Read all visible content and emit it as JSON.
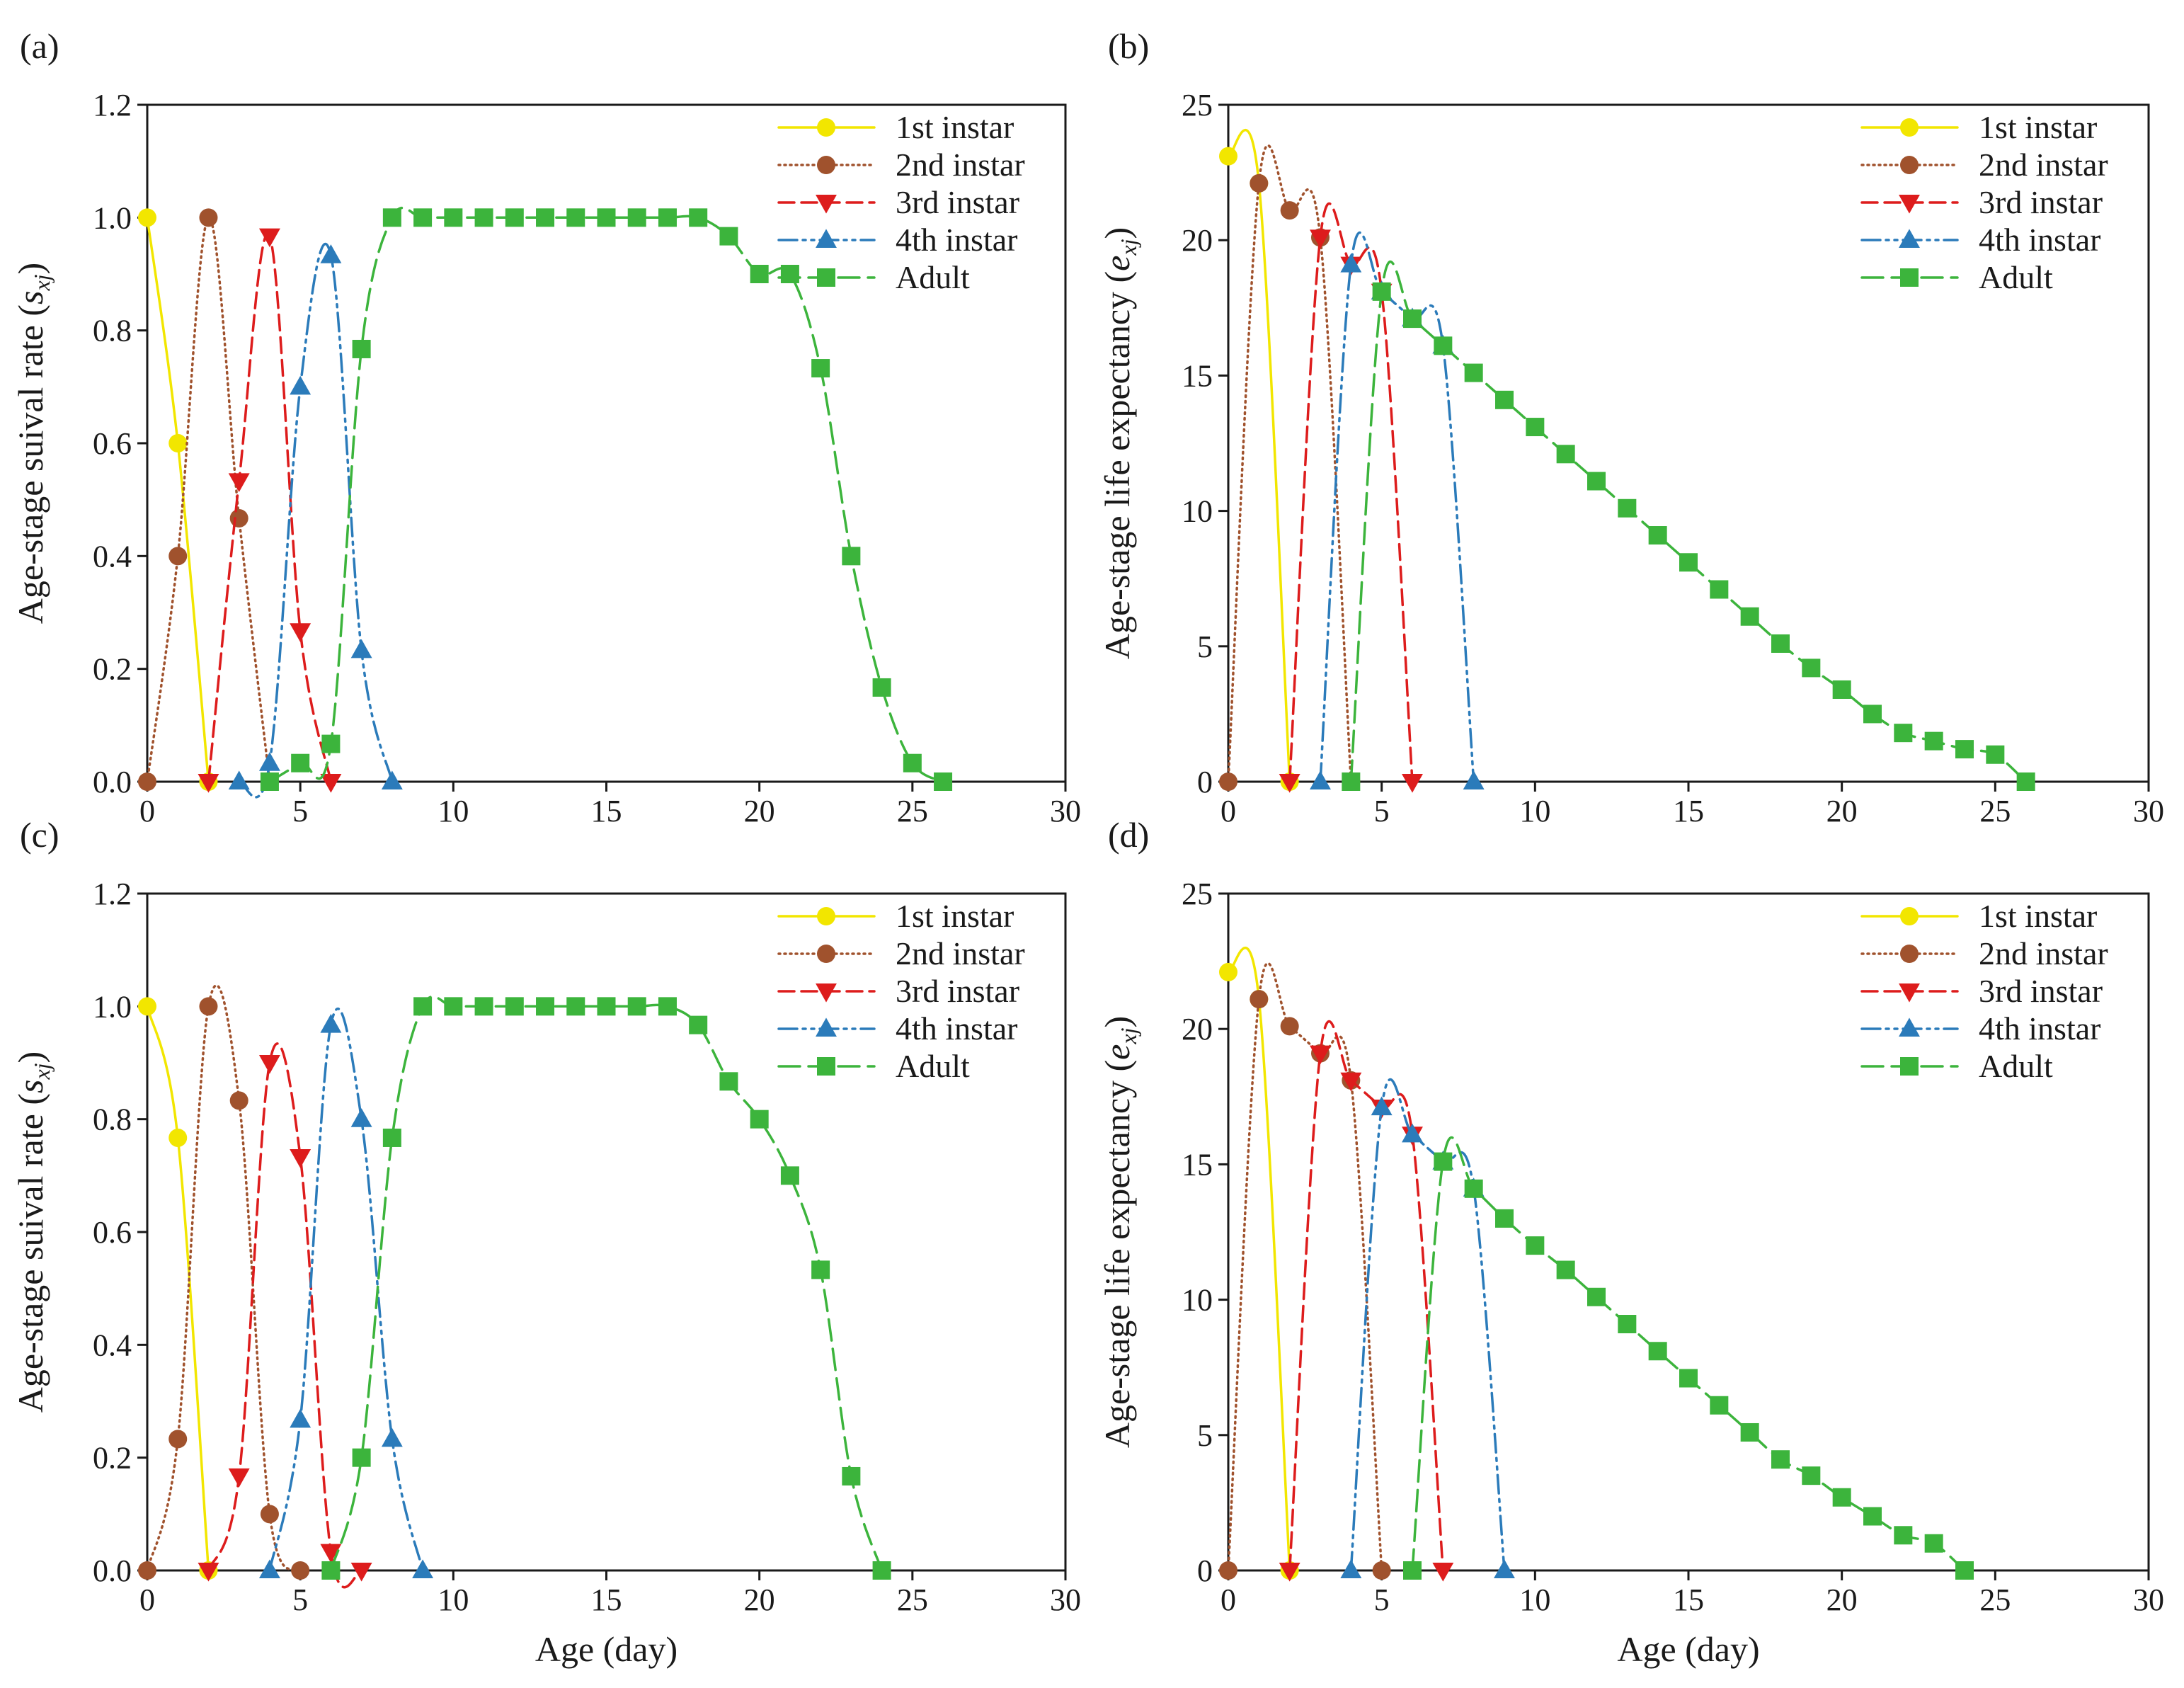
{
  "colors": {
    "1st instar": "#f2e600",
    "2nd instar": "#a0522d",
    "3rd instar": "#dd1c1c",
    "4th instar": "#2b7bba",
    "Adult": "#3cb43c"
  },
  "markers": {
    "1st instar": "circle",
    "2nd instar": "circle",
    "3rd instar": "triangle-down",
    "4th instar": "triangle-up",
    "Adult": "square"
  },
  "dashes": {
    "1st instar": "",
    "2nd instar": "2 6",
    "3rd instar": "22 10",
    "4th instar": "26 8 4 8 4 8",
    "Adult": "30 12"
  },
  "chart_data": [
    {
      "panel": "(a)",
      "type": "line",
      "xlabel": "",
      "ylabel": "Age-stage suival rate (sxj)",
      "ylabel_main": "Age-stage suival rate (",
      "ylabel_var": "s",
      "ylabel_sub": "xj",
      "ylabel_close": ")",
      "xlim": [
        0,
        30
      ],
      "ylim": [
        0,
        1.2
      ],
      "xticks": [
        "0",
        "5",
        "10",
        "15",
        "20",
        "25",
        "30"
      ],
      "yticks": [
        "0.0",
        "0.2",
        "0.4",
        "0.6",
        "0.8",
        "1.0",
        "1.2"
      ],
      "legend_position": "top-right",
      "series": [
        {
          "name": "1st instar",
          "x": [
            0,
            1,
            2
          ],
          "y": [
            1.0,
            0.6,
            0.0
          ]
        },
        {
          "name": "2nd instar",
          "x": [
            0,
            1,
            2,
            3,
            4
          ],
          "y": [
            0.0,
            0.4,
            1.0,
            0.467,
            0.0
          ]
        },
        {
          "name": "3rd instar",
          "x": [
            2,
            3,
            4,
            5,
            6
          ],
          "y": [
            0.0,
            0.533,
            0.967,
            0.267,
            0.0
          ]
        },
        {
          "name": "4th instar",
          "x": [
            3,
            4,
            5,
            6,
            7,
            8
          ],
          "y": [
            0.0,
            0.033,
            0.7,
            0.933,
            0.233,
            0.0
          ]
        },
        {
          "name": "Adult",
          "x": [
            4,
            5,
            6,
            7,
            8,
            9,
            10,
            11,
            12,
            13,
            14,
            15,
            16,
            17,
            18,
            19,
            20,
            21,
            22,
            23,
            24,
            25,
            26
          ],
          "y": [
            0.0,
            0.033,
            0.067,
            0.767,
            1.0,
            1.0,
            1.0,
            1.0,
            1.0,
            1.0,
            1.0,
            1.0,
            1.0,
            1.0,
            1.0,
            0.967,
            0.9,
            0.9,
            0.733,
            0.4,
            0.167,
            0.033,
            0.0
          ]
        }
      ]
    },
    {
      "panel": "(b)",
      "type": "line",
      "xlabel": "",
      "ylabel": "Age-stage life expectancy (exj)",
      "ylabel_main": "Age-stage life expectancy (",
      "ylabel_var": "e",
      "ylabel_sub": "xj",
      "ylabel_close": ")",
      "xlim": [
        0,
        30
      ],
      "ylim": [
        0,
        25
      ],
      "xticks": [
        "0",
        "5",
        "10",
        "15",
        "20",
        "25",
        "30"
      ],
      "yticks": [
        "0",
        "5",
        "10",
        "15",
        "20",
        "25"
      ],
      "legend_position": "top-right",
      "series": [
        {
          "name": "1st instar",
          "x": [
            0,
            1,
            2
          ],
          "y": [
            23.1,
            22.1,
            0
          ]
        },
        {
          "name": "2nd instar",
          "x": [
            0,
            1,
            2,
            3,
            4
          ],
          "y": [
            0,
            22.1,
            21.1,
            20.1,
            0
          ]
        },
        {
          "name": "3rd instar",
          "x": [
            2,
            3,
            4,
            5,
            6
          ],
          "y": [
            0,
            20.1,
            19.1,
            18.1,
            0
          ]
        },
        {
          "name": "4th instar",
          "x": [
            3,
            4,
            5,
            6,
            7,
            8
          ],
          "y": [
            0,
            19.1,
            18.1,
            17.1,
            16.1,
            0
          ]
        },
        {
          "name": "Adult",
          "x": [
            4,
            5,
            6,
            7,
            8,
            9,
            10,
            11,
            12,
            13,
            14,
            15,
            16,
            17,
            18,
            19,
            20,
            21,
            22,
            23,
            24,
            25,
            26
          ],
          "y": [
            0,
            18.1,
            17.1,
            16.1,
            15.1,
            14.1,
            13.1,
            12.1,
            11.1,
            10.1,
            9.1,
            8.1,
            7.1,
            6.1,
            5.1,
            4.2,
            3.4,
            2.5,
            1.8,
            1.5,
            1.2,
            1.0,
            0
          ]
        }
      ]
    },
    {
      "panel": "(c)",
      "type": "line",
      "xlabel": "Age (day)",
      "ylabel": "Age-stage suival rate (sxj)",
      "ylabel_main": "Age-stage suival rate (",
      "ylabel_var": "s",
      "ylabel_sub": "xj",
      "ylabel_close": ")",
      "xlim": [
        0,
        30
      ],
      "ylim": [
        0,
        1.2
      ],
      "xticks": [
        "0",
        "5",
        "10",
        "15",
        "20",
        "25",
        "30"
      ],
      "yticks": [
        "0.0",
        "0.2",
        "0.4",
        "0.6",
        "0.8",
        "1.0",
        "1.2"
      ],
      "legend_position": "top-right",
      "series": [
        {
          "name": "1st instar",
          "x": [
            0,
            1,
            2
          ],
          "y": [
            1.0,
            0.767,
            0.0
          ]
        },
        {
          "name": "2nd instar",
          "x": [
            0,
            1,
            2,
            3,
            4,
            5
          ],
          "y": [
            0.0,
            0.233,
            1.0,
            0.833,
            0.1,
            0.0
          ]
        },
        {
          "name": "3rd instar",
          "x": [
            2,
            3,
            4,
            5,
            6,
            7
          ],
          "y": [
            0.0,
            0.167,
            0.9,
            0.733,
            0.033,
            0.0
          ]
        },
        {
          "name": "4th instar",
          "x": [
            4,
            5,
            6,
            7,
            8,
            9
          ],
          "y": [
            0.0,
            0.267,
            0.967,
            0.8,
            0.233,
            0.0
          ]
        },
        {
          "name": "Adult",
          "x": [
            6,
            7,
            8,
            9,
            10,
            11,
            12,
            13,
            14,
            15,
            16,
            17,
            18,
            19,
            20,
            21,
            22,
            23,
            24
          ],
          "y": [
            0.0,
            0.2,
            0.767,
            1.0,
            1.0,
            1.0,
            1.0,
            1.0,
            1.0,
            1.0,
            1.0,
            1.0,
            0.967,
            0.867,
            0.8,
            0.7,
            0.533,
            0.167,
            0.0
          ]
        }
      ]
    },
    {
      "panel": "(d)",
      "type": "line",
      "xlabel": "Age (day)",
      "ylabel": "Age-stage life expectancy (exj)",
      "ylabel_main": "Age-stage life expectancy (",
      "ylabel_var": "e",
      "ylabel_sub": "xj",
      "ylabel_close": ")",
      "xlim": [
        0,
        30
      ],
      "ylim": [
        0,
        25
      ],
      "xticks": [
        "0",
        "5",
        "10",
        "15",
        "20",
        "25",
        "30"
      ],
      "yticks": [
        "0",
        "5",
        "10",
        "15",
        "20",
        "25"
      ],
      "legend_position": "top-right",
      "series": [
        {
          "name": "1st instar",
          "x": [
            0,
            1,
            2
          ],
          "y": [
            22.1,
            21.1,
            0
          ]
        },
        {
          "name": "2nd instar",
          "x": [
            0,
            1,
            2,
            3,
            4,
            5
          ],
          "y": [
            0,
            21.1,
            20.1,
            19.1,
            18.1,
            0
          ]
        },
        {
          "name": "3rd instar",
          "x": [
            2,
            3,
            4,
            5,
            6,
            7
          ],
          "y": [
            0,
            19.1,
            18.1,
            17.1,
            16.1,
            0
          ]
        },
        {
          "name": "4th instar",
          "x": [
            4,
            5,
            6,
            7,
            8,
            9
          ],
          "y": [
            0,
            17.1,
            16.1,
            15.1,
            14.1,
            0
          ]
        },
        {
          "name": "Adult",
          "x": [
            6,
            7,
            8,
            9,
            10,
            11,
            12,
            13,
            14,
            15,
            16,
            17,
            18,
            19,
            20,
            21,
            22,
            23,
            24
          ],
          "y": [
            0,
            15.1,
            14.1,
            13.0,
            12.0,
            11.1,
            10.1,
            9.1,
            8.1,
            7.1,
            6.1,
            5.1,
            4.1,
            3.5,
            2.7,
            2.0,
            1.3,
            1.0,
            0
          ]
        }
      ]
    }
  ]
}
